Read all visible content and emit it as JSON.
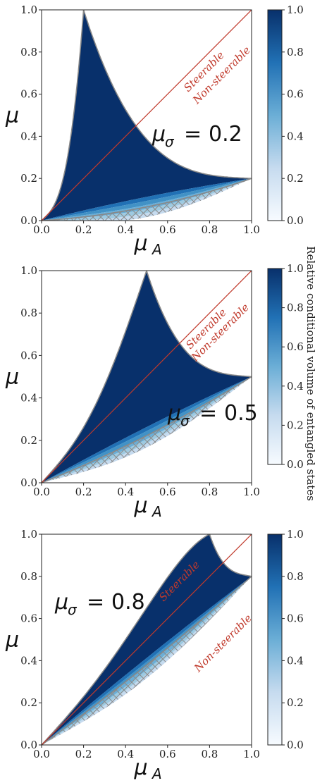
{
  "chart_data": [
    {
      "type": "heatmap",
      "annotation": {
        "symbol": "μ",
        "subscript": "σ",
        "equals": "=",
        "value": "0.2"
      },
      "mu_sigma": 0.2,
      "xlabel": {
        "symbol": "μ",
        "subscript": "A"
      },
      "ylabel": "μ",
      "xlim": [
        0,
        1
      ],
      "ylim": [
        0,
        1
      ],
      "xticks": [
        "0.0",
        "0.2",
        "0.4",
        "0.6",
        "0.8",
        "1.0"
      ],
      "yticks": [
        "0.0",
        "0.2",
        "0.4",
        "0.6",
        "0.8",
        "1.0"
      ],
      "region_labels": {
        "upper": "Steerable",
        "lower": "Non-steerable"
      },
      "diagonal": {
        "x": [
          0,
          1
        ],
        "y": [
          0,
          1
        ]
      },
      "colorbar": {
        "min": 0.0,
        "max": 1.0,
        "ticks": [
          "0.0",
          "0.2",
          "0.4",
          "0.6",
          "0.8",
          "1.0"
        ],
        "colormap": "Blues",
        "label": ""
      }
    },
    {
      "type": "heatmap",
      "annotation": {
        "symbol": "μ",
        "subscript": "σ",
        "equals": "=",
        "value": "0.5"
      },
      "mu_sigma": 0.5,
      "xlabel": {
        "symbol": "μ",
        "subscript": "A"
      },
      "ylabel": "μ",
      "xlim": [
        0,
        1
      ],
      "ylim": [
        0,
        1
      ],
      "xticks": [
        "0.0",
        "0.2",
        "0.4",
        "0.6",
        "0.8",
        "1.0"
      ],
      "yticks": [
        "0.0",
        "0.2",
        "0.4",
        "0.6",
        "0.8",
        "1.0"
      ],
      "region_labels": {
        "upper": "Steerable",
        "lower": "Non-steerable"
      },
      "diagonal": {
        "x": [
          0,
          1
        ],
        "y": [
          0,
          1
        ]
      },
      "colorbar": {
        "min": 0.0,
        "max": 1.0,
        "ticks": [
          "0.0",
          "0.2",
          "0.4",
          "0.6",
          "0.8",
          "1.0"
        ],
        "colormap": "Blues",
        "label": "Relative conditional volume of entangled states"
      }
    },
    {
      "type": "heatmap",
      "annotation": {
        "symbol": "μ",
        "subscript": "σ",
        "equals": "=",
        "value": "0.8"
      },
      "mu_sigma": 0.8,
      "xlabel": {
        "symbol": "μ",
        "subscript": "A"
      },
      "ylabel": "μ",
      "xlim": [
        0,
        1
      ],
      "ylim": [
        0,
        1
      ],
      "xticks": [
        "0.0",
        "0.2",
        "0.4",
        "0.6",
        "0.8",
        "1.0"
      ],
      "yticks": [
        "0.0",
        "0.2",
        "0.4",
        "0.6",
        "0.8",
        "1.0"
      ],
      "region_labels": {
        "upper": "Steerable",
        "lower": "Non-steerable"
      },
      "diagonal": {
        "x": [
          0,
          1
        ],
        "y": [
          0,
          1
        ]
      },
      "colorbar": {
        "min": 0.0,
        "max": 1.0,
        "ticks": [
          "0.0",
          "0.2",
          "0.4",
          "0.6",
          "0.8",
          "1.0"
        ],
        "colormap": "Blues",
        "label": ""
      }
    }
  ],
  "colors": {
    "fill_dark": "#08306b",
    "fill_mid": "#2171b5",
    "fill_light": "#c6dbef",
    "diagonal": "#c0392b",
    "boundary": "#888888",
    "hatch": "#8a8a8a",
    "region_text": "#c0392b"
  }
}
